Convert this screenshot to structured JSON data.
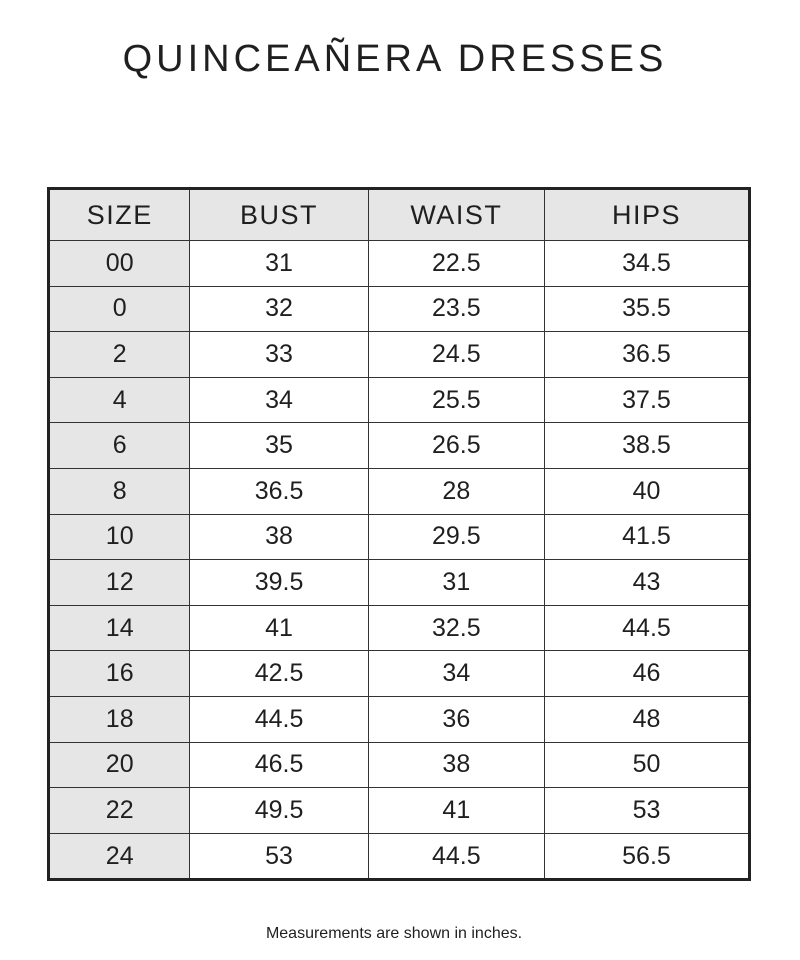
{
  "title": "QUINCEAÑERA DRESSES",
  "table": {
    "headers": [
      "SIZE",
      "BUST",
      "WAIST",
      "HIPS"
    ],
    "rows": [
      [
        "00",
        "31",
        "22.5",
        "34.5"
      ],
      [
        "0",
        "32",
        "23.5",
        "35.5"
      ],
      [
        "2",
        "33",
        "24.5",
        "36.5"
      ],
      [
        "4",
        "34",
        "25.5",
        "37.5"
      ],
      [
        "6",
        "35",
        "26.5",
        "38.5"
      ],
      [
        "8",
        "36.5",
        "28",
        "40"
      ],
      [
        "10",
        "38",
        "29.5",
        "41.5"
      ],
      [
        "12",
        "39.5",
        "31",
        "43"
      ],
      [
        "14",
        "41",
        "32.5",
        "44.5"
      ],
      [
        "16",
        "42.5",
        "34",
        "46"
      ],
      [
        "18",
        "44.5",
        "36",
        "48"
      ],
      [
        "20",
        "46.5",
        "38",
        "50"
      ],
      [
        "22",
        "49.5",
        "41",
        "53"
      ],
      [
        "24",
        "53",
        "44.5",
        "56.5"
      ]
    ]
  },
  "footnote": "Measurements are shown in inches.",
  "colors": {
    "header_bg": "#e6e6e6",
    "border": "#222222",
    "text": "#1f1f1f"
  }
}
